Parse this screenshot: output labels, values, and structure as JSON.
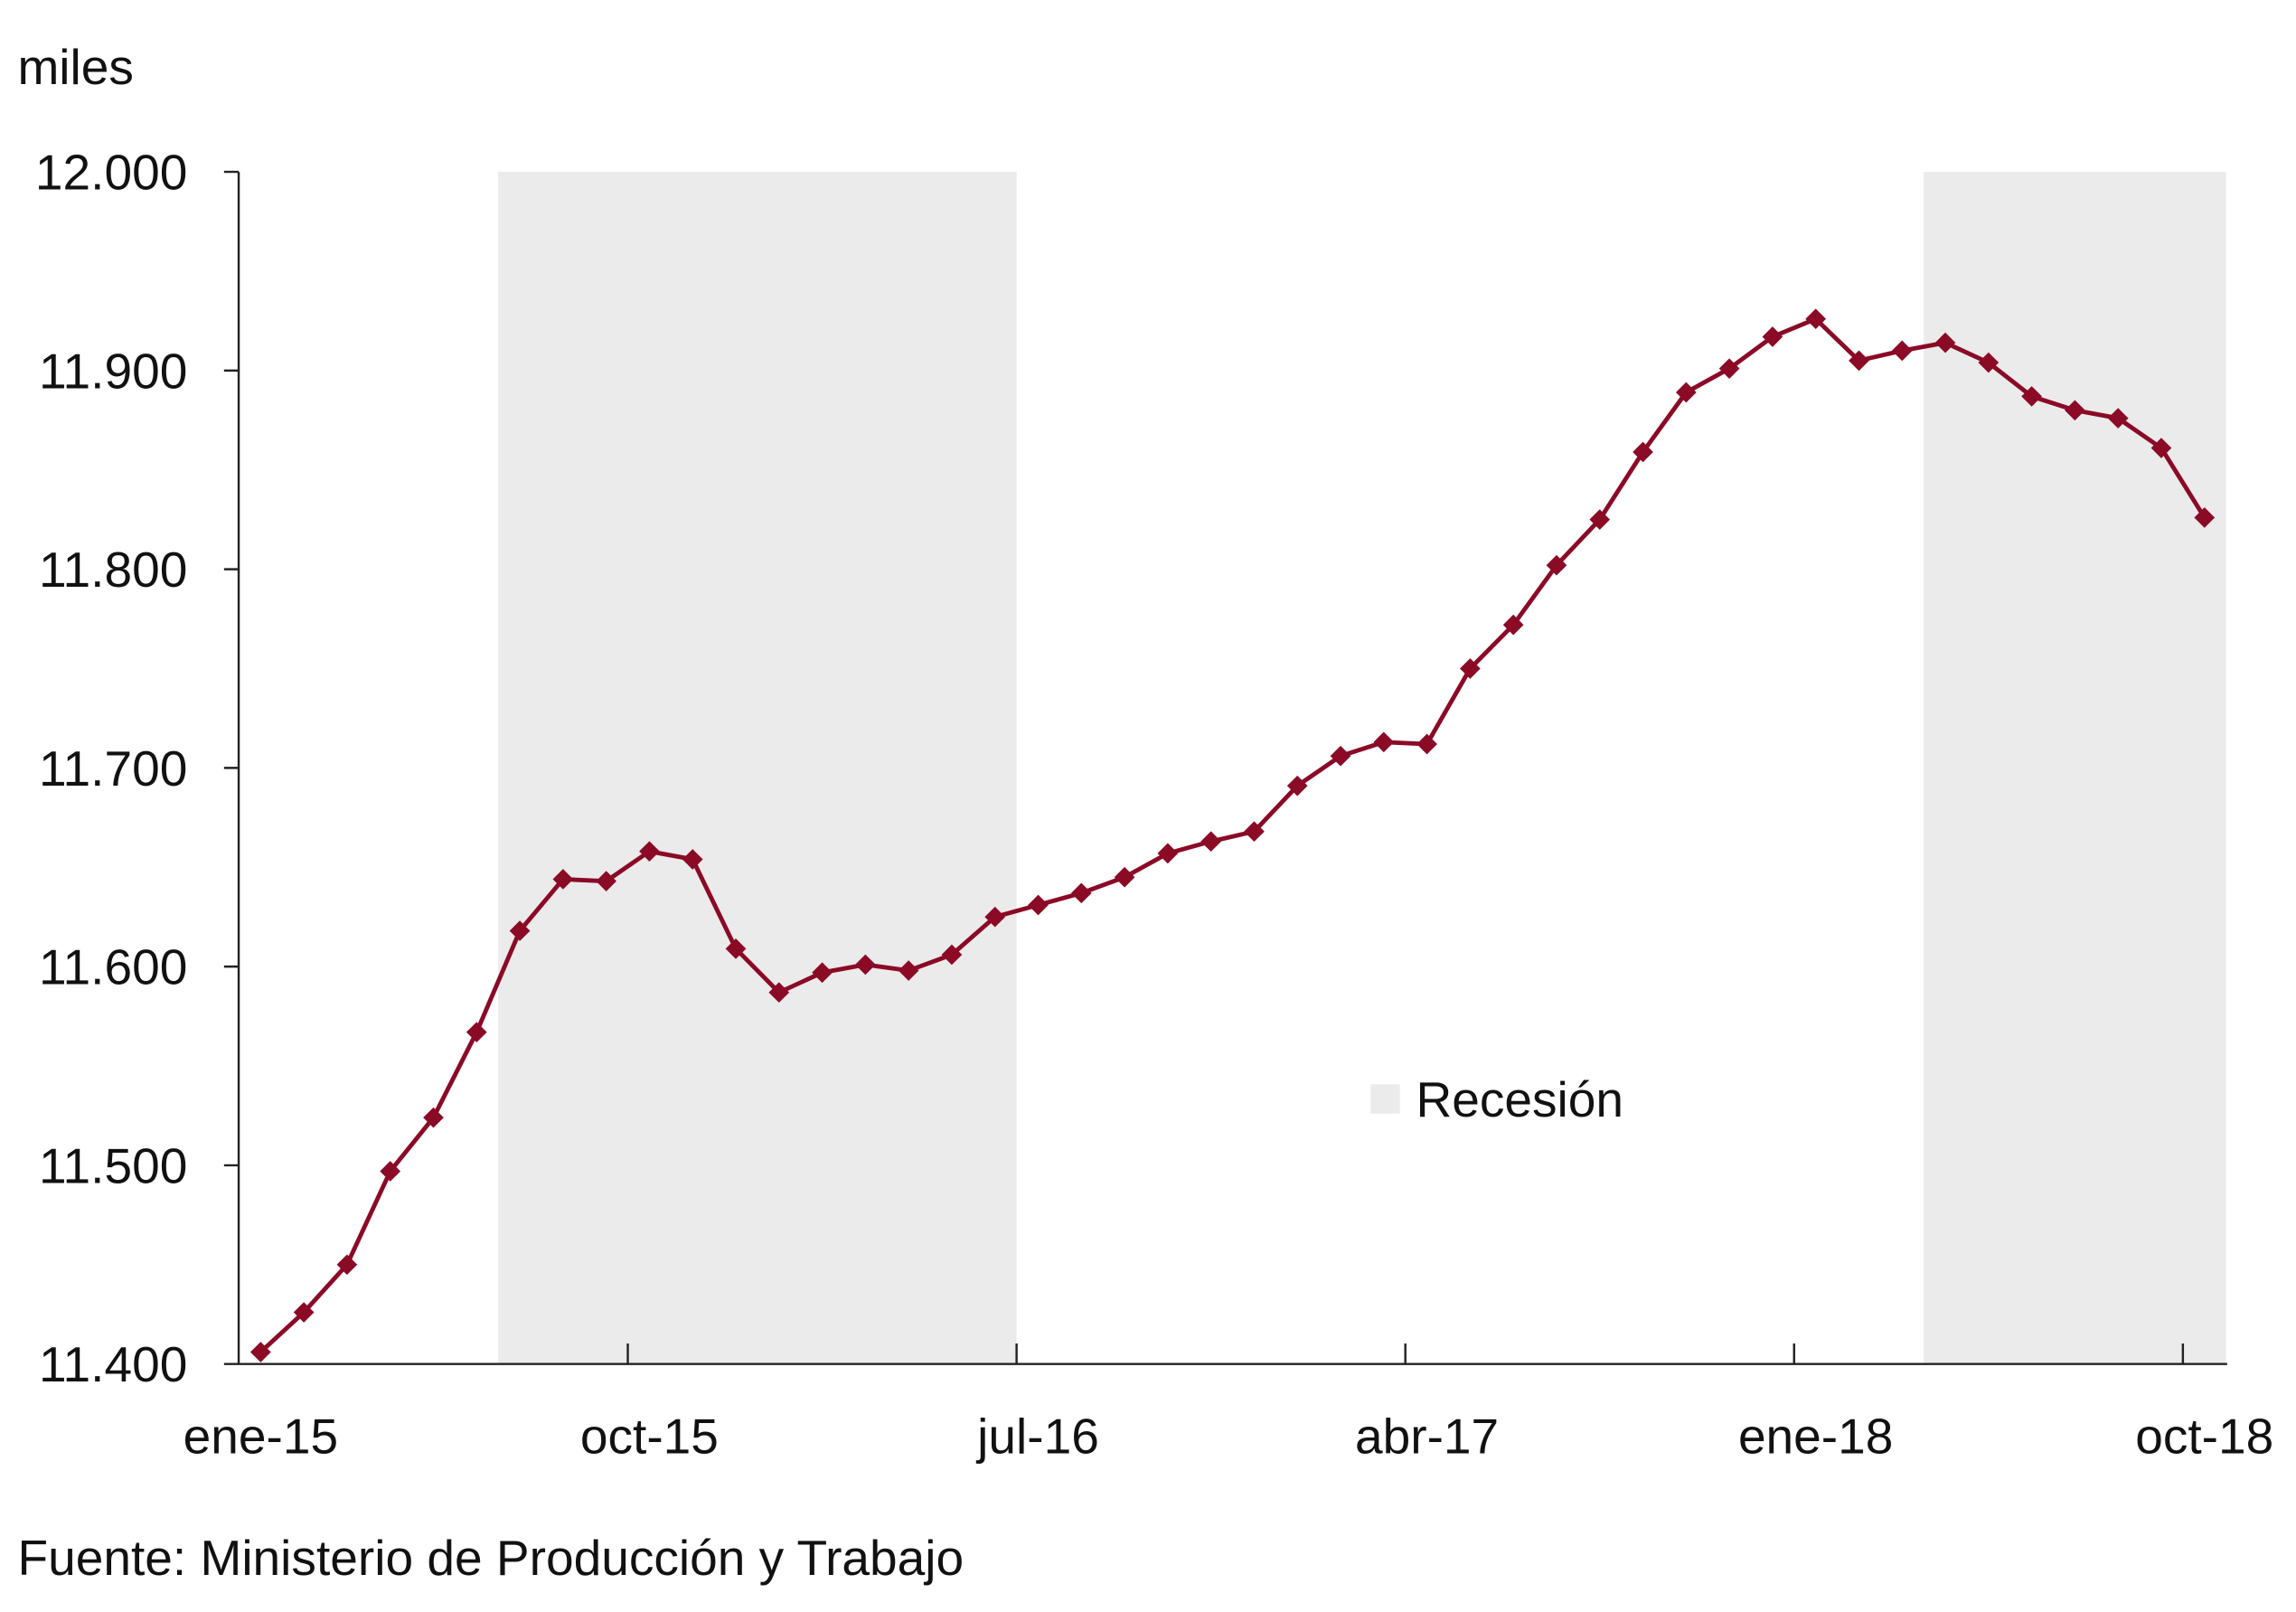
{
  "chart_data": {
    "type": "line",
    "title": "",
    "ylabel": "miles",
    "xlabel": "",
    "ylim": [
      11400,
      12000
    ],
    "yticks": [
      "11.400",
      "11.500",
      "11.600",
      "11.700",
      "11.800",
      "11.900",
      "12.000"
    ],
    "ytick_values": [
      11400,
      11500,
      11600,
      11700,
      11800,
      11900,
      12000
    ],
    "x": [
      "ene-15",
      "feb-15",
      "mar-15",
      "abr-15",
      "may-15",
      "jun-15",
      "jul-15",
      "ago-15",
      "sep-15",
      "oct-15",
      "nov-15",
      "dic-15",
      "ene-16",
      "feb-16",
      "mar-16",
      "abr-16",
      "may-16",
      "jun-16",
      "jul-16",
      "ago-16",
      "sep-16",
      "oct-16",
      "nov-16",
      "dic-16",
      "ene-17",
      "feb-17",
      "mar-17",
      "abr-17",
      "may-17",
      "jun-17",
      "jul-17",
      "ago-17",
      "sep-17",
      "oct-17",
      "nov-17",
      "dic-17",
      "ene-18",
      "feb-18",
      "mar-18",
      "abr-18",
      "may-18",
      "jun-18",
      "jul-18",
      "ago-18",
      "sep-18",
      "oct-18"
    ],
    "xtick_labels": [
      "ene-15",
      "oct-15",
      "jul-16",
      "abr-17",
      "ene-18",
      "oct-18"
    ],
    "series": [
      {
        "color": "#8B0A26",
        "marker": "diamond",
        "values": [
          11406,
          11426,
          11450,
          11497,
          11524,
          11567,
          11618,
          11644,
          11643,
          11658,
          11654,
          11609,
          11587,
          11597,
          11601,
          11598,
          11606,
          11625,
          11631,
          11637,
          11645,
          11657,
          11663,
          11668,
          11691,
          11706,
          11713,
          11712,
          11750,
          11772,
          11802,
          11825,
          11859,
          11889,
          11901,
          11917,
          11926,
          11905,
          11910,
          11914,
          11904,
          11887,
          11880,
          11876,
          11861,
          11826
        ]
      }
    ],
    "shaded_periods": [
      {
        "start": "jul-15",
        "end": "jun-16"
      },
      {
        "start": "abr-18",
        "end": "oct-18"
      }
    ],
    "shade_color": "#EBEBEB",
    "legend": {
      "label": "Recesión",
      "placement": "center-right"
    },
    "grid": false,
    "source": "Fuente: Ministerio de Producción y Trabajo"
  }
}
